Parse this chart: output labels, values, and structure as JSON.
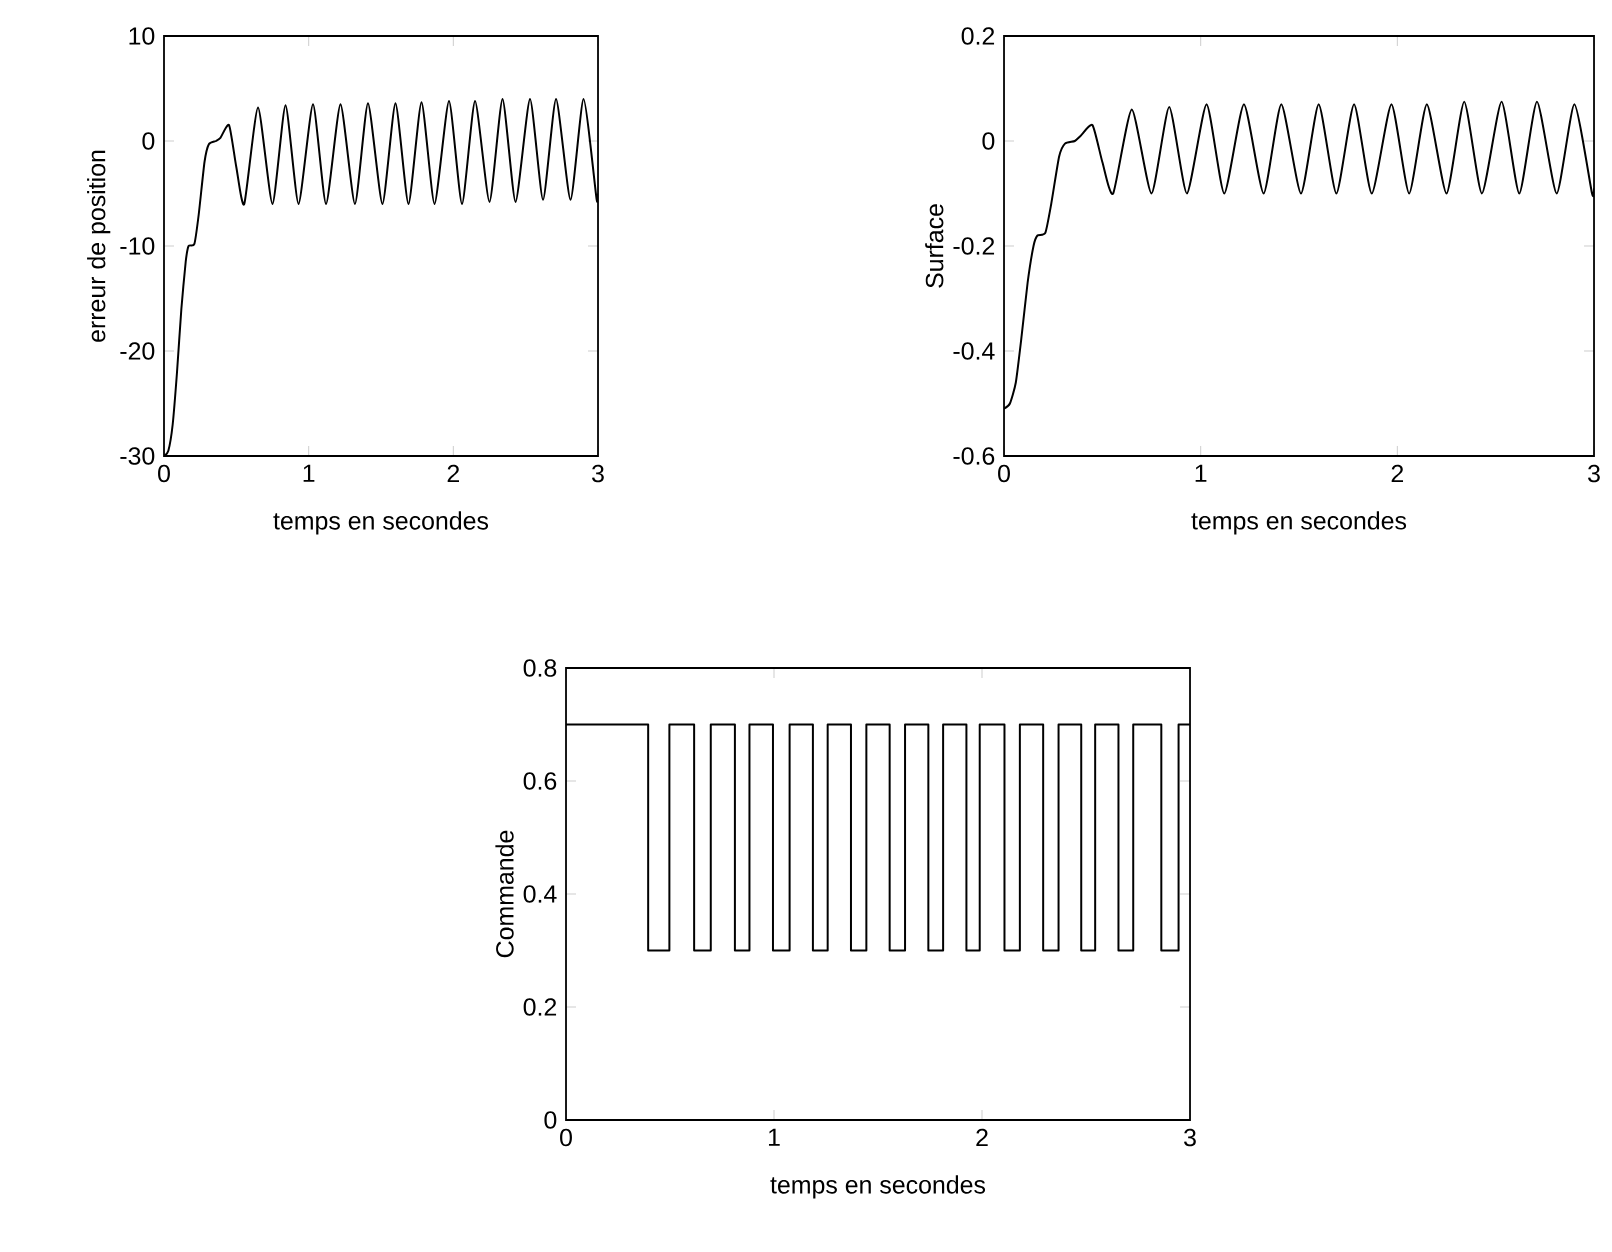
{
  "chart_data": [
    {
      "type": "line",
      "xlabel": "temps en secondes",
      "ylabel": "erreur de position",
      "color": "#000000",
      "x": [
        0,
        0.03,
        0.06,
        0.09,
        0.12,
        0.15,
        0.17,
        0.21,
        0.24,
        0.28,
        0.31,
        0.36,
        0.39,
        0.45,
        0.5,
        0.555,
        0.65,
        0.75,
        0.84,
        0.93,
        1.03,
        1.12,
        1.22,
        1.32,
        1.41,
        1.51,
        1.6,
        1.69,
        1.78,
        1.87,
        1.97,
        2.06,
        2.15,
        2.25,
        2.34,
        2.43,
        2.53,
        2.62,
        2.71,
        2.81,
        2.9,
        2.99,
        3.0
      ],
      "values": [
        -30,
        -29.5,
        -27,
        -22,
        -16,
        -11.5,
        -10,
        -9.8,
        -7,
        -2,
        -0.3,
        0,
        0.3,
        1.5,
        -2.5,
        -6,
        3.2,
        -6,
        3.4,
        -6,
        3.5,
        -6,
        3.5,
        -6,
        3.6,
        -6,
        3.6,
        -6,
        3.7,
        -6,
        3.8,
        -6,
        3.8,
        -5.8,
        4,
        -5.8,
        4,
        -5.6,
        4,
        -5.6,
        4,
        -5.5,
        -5
      ],
      "xlim": [
        0,
        3
      ],
      "ylim": [
        -30,
        10
      ],
      "xticks": [
        0,
        1,
        2,
        3
      ],
      "yticks": [
        -30,
        -20,
        -10,
        0,
        10
      ]
    },
    {
      "type": "line",
      "xlabel": "temps en secondes",
      "ylabel": "Surface",
      "color": "#000000",
      "x": [
        0,
        0.03,
        0.06,
        0.09,
        0.12,
        0.15,
        0.17,
        0.21,
        0.24,
        0.28,
        0.31,
        0.36,
        0.39,
        0.45,
        0.5,
        0.555,
        0.65,
        0.75,
        0.84,
        0.93,
        1.03,
        1.12,
        1.22,
        1.32,
        1.41,
        1.51,
        1.6,
        1.69,
        1.78,
        1.87,
        1.97,
        2.06,
        2.15,
        2.25,
        2.34,
        2.43,
        2.53,
        2.62,
        2.71,
        2.81,
        2.9,
        2.99,
        3.0
      ],
      "values": [
        -0.51,
        -0.5,
        -0.46,
        -0.37,
        -0.27,
        -0.2,
        -0.18,
        -0.175,
        -0.12,
        -0.03,
        -0.005,
        0,
        0.01,
        0.03,
        -0.04,
        -0.1,
        0.06,
        -0.1,
        0.065,
        -0.1,
        0.07,
        -0.1,
        0.07,
        -0.1,
        0.07,
        -0.1,
        0.07,
        -0.1,
        0.07,
        -0.1,
        0.07,
        -0.1,
        0.07,
        -0.1,
        0.075,
        -0.1,
        0.075,
        -0.1,
        0.075,
        -0.1,
        0.07,
        -0.1,
        -0.09
      ],
      "xlim": [
        0,
        3
      ],
      "ylim": [
        -0.6,
        0.2
      ],
      "xticks": [
        0,
        1,
        2,
        3
      ],
      "yticks": [
        -0.6,
        -0.4,
        -0.2,
        0,
        0.2
      ]
    },
    {
      "type": "step",
      "xlabel": "temps en secondes",
      "ylabel": "Commande",
      "color": "#000000",
      "x": [
        0,
        0.395,
        0.497,
        0.616,
        0.696,
        0.812,
        0.882,
        0.995,
        1.075,
        1.187,
        1.258,
        1.37,
        1.444,
        1.556,
        1.63,
        1.742,
        1.813,
        1.925,
        1.989,
        2.108,
        2.182,
        2.294,
        2.368,
        2.477,
        2.544,
        2.656,
        2.727,
        2.862,
        2.945,
        3.0
      ],
      "values": [
        0.7,
        0.3,
        0.7,
        0.3,
        0.7,
        0.3,
        0.7,
        0.3,
        0.7,
        0.3,
        0.7,
        0.3,
        0.7,
        0.3,
        0.7,
        0.3,
        0.7,
        0.3,
        0.7,
        0.3,
        0.7,
        0.3,
        0.7,
        0.3,
        0.7,
        0.3,
        0.7,
        0.3,
        0.7,
        0.7
      ],
      "xlim": [
        0,
        3
      ],
      "ylim": [
        0,
        0.8
      ],
      "xticks": [
        0,
        1,
        2,
        3
      ],
      "yticks": [
        0,
        0.2,
        0.4,
        0.6,
        0.8
      ]
    }
  ]
}
